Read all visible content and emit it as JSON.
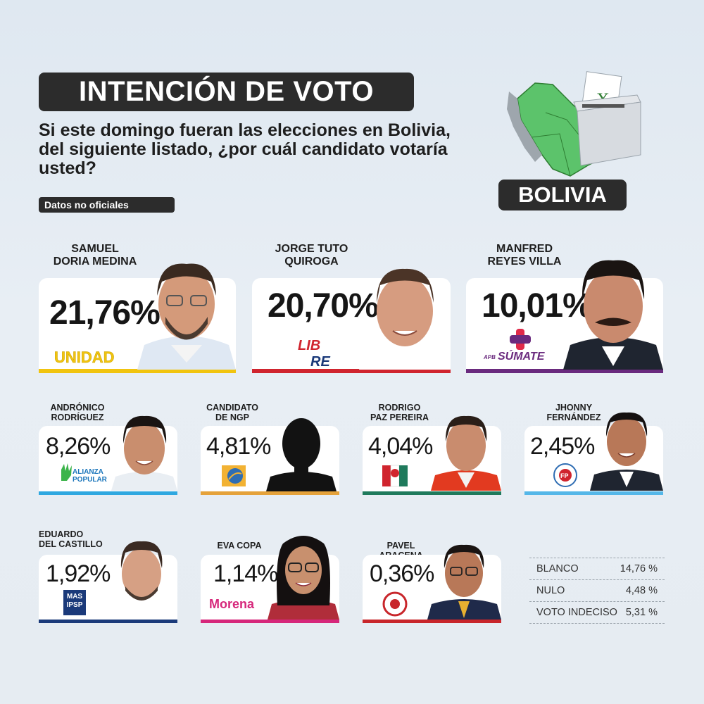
{
  "header": {
    "title": "INTENCIÓN DE VOTO",
    "question": "Si este domingo fueran las elecciones en Bolivia, del siguiente listado, ¿por cuál candidato votaría usted?",
    "note": "Datos no oficiales",
    "country": "BOLIVIA",
    "ballot_mark": "X"
  },
  "chart_data": {
    "type": "bar",
    "categories": [
      "SAMUEL DORIA MEDINA",
      "JORGE TUTO QUIROGA",
      "MANFRED REYES VILLA",
      "ANDRÓNICO RODRÍGUEZ",
      "CANDIDATO DE NGP",
      "RODRIGO PAZ PEREIRA",
      "JHONNY FERNÁNDEZ",
      "EDUARDO DEL CASTILLO",
      "EVA COPA",
      "PAVEL ARACENA"
    ],
    "values": [
      21.76,
      20.7,
      10.01,
      8.26,
      4.81,
      4.04,
      2.45,
      1.92,
      1.14,
      0.36
    ],
    "unit": "%",
    "other": [
      {
        "label": "BLANCO",
        "value": 14.76
      },
      {
        "label": "NULO",
        "value": 4.48
      },
      {
        "label": "VOTO INDECISO",
        "value": 5.31
      }
    ]
  },
  "candidates": [
    {
      "name1": "SAMUEL",
      "name2": "DORIA MEDINA",
      "pct": "21,76%",
      "party": "UNIDAD",
      "color": "#f1c40f"
    },
    {
      "name1": "JORGE TUTO",
      "name2": "QUIROGA",
      "pct": "20,70%",
      "party1": "LIB",
      "party2": "RE",
      "color": "#d0242e"
    },
    {
      "name1": "MANFRED",
      "name2": "REYES VILLA",
      "pct": "10,01%",
      "party_pre": "APB",
      "party": "SÚMATE",
      "color": "#6a2a7e"
    },
    {
      "name1": "ANDRÓNICO",
      "name2": "RODRÍGUEZ",
      "pct": "8,26%",
      "party1": "ALIANZA",
      "party2": "POPULAR",
      "color": "#2fa8e0"
    },
    {
      "name1": "CANDIDATO",
      "name2": "DE NGP",
      "pct": "4,81%",
      "color": "#e5a23a"
    },
    {
      "name1": "RODRIGO",
      "name2": "PAZ PEREIRA",
      "pct": "4,04%",
      "party": "PDC",
      "color": "#1f7a5c"
    },
    {
      "name1": "JHONNY",
      "name2": "FERNÁNDEZ",
      "pct": "2,45%",
      "party": "FP",
      "color": "#55b7e8"
    },
    {
      "name1": "EDUARDO",
      "name2": "DEL CASTILLO",
      "pct": "1,92%",
      "party1": "MAS",
      "party2": "IPSP",
      "color": "#1b3a7a"
    },
    {
      "name1": "EVA COPA",
      "name2": "",
      "pct": "1,14%",
      "party": "Morena",
      "color": "#d6277b"
    },
    {
      "name1": "PAVEL ARACENA",
      "name2": "",
      "pct": "0,36%",
      "color": "#c8262b"
    }
  ],
  "others": [
    {
      "label": "BLANCO",
      "value": "14,76 %"
    },
    {
      "label": "NULO",
      "value": "4,48 %"
    },
    {
      "label": "VOTO INDECISO",
      "value": "5,31 %"
    }
  ]
}
